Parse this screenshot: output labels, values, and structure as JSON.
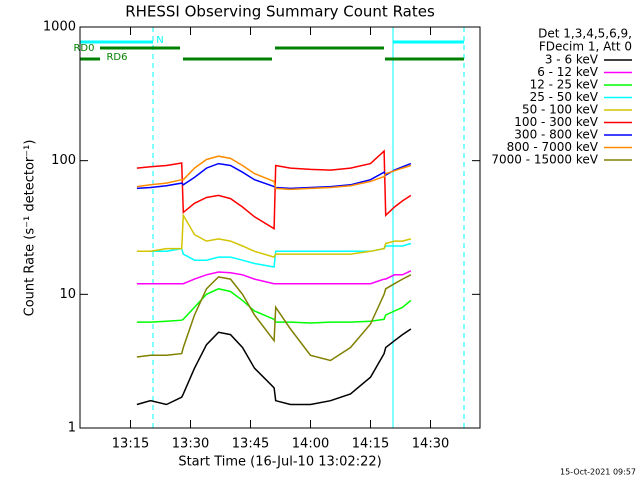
{
  "chart_data": {
    "type": "line",
    "title": "RHESSI Observing Summary Count Rates",
    "xlabel": "Start Time (16-Jul-10 13:02:22)",
    "ylabel": "Count Rate (s⁻¹ detector⁻¹)",
    "legend_header": [
      "Det 1,3,4,5,6,9,",
      "FDecim 1, Att 0"
    ],
    "footer": "15-Oct-2021 09:57",
    "log_y": true,
    "xlim": [
      2.37,
      102.37
    ],
    "ylim": [
      1,
      1000
    ],
    "xticks": [
      {
        "value": 15,
        "label": "13:15"
      },
      {
        "value": 30,
        "label": "13:30"
      },
      {
        "value": 45,
        "label": "13:45"
      },
      {
        "value": 60,
        "label": "14:00"
      },
      {
        "value": 75,
        "label": "14:15"
      },
      {
        "value": 90,
        "label": "14:30"
      }
    ],
    "yticks": [
      1,
      10,
      100,
      1000
    ],
    "x": [
      16.6,
      20,
      24,
      27.8,
      28.2,
      31,
      34,
      37,
      40,
      43,
      46,
      50.9,
      51.3,
      55,
      60,
      65,
      70,
      75,
      78.4,
      78.8,
      81,
      83,
      85.1
    ],
    "series": [
      {
        "name": "3 - 6 keV",
        "color": "#000000",
        "values": [
          1.5,
          1.6,
          1.5,
          1.7,
          1.8,
          2.8,
          4.2,
          5.2,
          5,
          4,
          2.8,
          2,
          1.6,
          1.5,
          1.5,
          1.6,
          1.8,
          2.4,
          3.6,
          4,
          4.5,
          5,
          5.5
        ]
      },
      {
        "name": "6 - 12 keV",
        "color": "#ff00ff",
        "values": [
          12,
          12,
          12,
          12,
          12,
          13,
          14,
          14.7,
          14.5,
          14,
          13,
          12,
          12,
          12,
          12,
          12,
          12,
          12,
          13,
          13,
          14,
          14,
          15
        ]
      },
      {
        "name": "12 - 25 keV",
        "color": "#00ff00",
        "values": [
          6.2,
          6.2,
          6.3,
          6.4,
          6.5,
          8,
          10,
          11,
          10.5,
          9,
          7.5,
          6.5,
          6.2,
          6.2,
          6.1,
          6.2,
          6.2,
          6.3,
          6.5,
          7,
          7.5,
          8,
          9
        ]
      },
      {
        "name": "25 - 50 keV",
        "color": "#00ffff",
        "values": [
          21,
          21,
          21,
          22,
          20,
          18,
          18,
          19,
          19,
          18,
          17,
          16,
          21,
          21,
          21,
          21,
          21,
          21,
          22,
          23,
          23,
          23,
          24
        ]
      },
      {
        "name": "50 - 100 keV",
        "color": "#d4c400",
        "values": [
          21,
          21,
          22,
          22,
          39,
          28,
          25,
          26,
          25,
          23,
          21,
          19,
          20,
          20,
          20,
          20,
          20,
          21,
          22,
          24,
          25,
          25,
          26
        ]
      },
      {
        "name": "100 - 300 keV",
        "color": "#ff0000",
        "values": [
          88,
          90,
          92,
          96,
          41,
          48,
          53,
          55,
          52,
          45,
          38,
          31,
          92,
          88,
          86,
          85,
          88,
          95,
          118,
          39,
          45,
          50,
          55
        ]
      },
      {
        "name": "300 - 800 keV",
        "color": "#0000ff",
        "values": [
          62,
          63,
          65,
          68,
          66,
          75,
          88,
          95,
          92,
          82,
          72,
          64,
          63,
          62,
          63,
          64,
          66,
          72,
          82,
          78,
          85,
          90,
          95
        ]
      },
      {
        "name": "800 - 7000 keV",
        "color": "#ff8c00",
        "values": [
          64,
          66,
          68,
          72,
          72,
          88,
          102,
          108,
          104,
          92,
          80,
          70,
          62,
          61,
          62,
          63,
          65,
          70,
          76,
          80,
          84,
          88,
          92
        ]
      },
      {
        "name": "7000 - 15000 keV",
        "color": "#808000",
        "values": [
          3.4,
          3.5,
          3.5,
          3.6,
          4,
          7,
          11,
          13.5,
          13,
          10,
          7,
          4.5,
          8,
          5.5,
          3.5,
          3.2,
          4,
          6,
          10,
          11,
          12,
          13,
          14
        ]
      }
    ],
    "flags": [
      {
        "label": "N",
        "color": "#00ffff",
        "intervals": [
          [
            2.37,
            20.62
          ],
          [
            80.62,
            98.37
          ]
        ]
      },
      {
        "label": "RD0",
        "color": "#008000",
        "intervals": [
          [
            7.37,
            27.37
          ],
          [
            51.12,
            78.37
          ]
        ]
      },
      {
        "label": "RD6",
        "color": "#008000",
        "intervals": [
          [
            2.37,
            7.37
          ],
          [
            28.12,
            50.37
          ],
          [
            78.62,
            98.37
          ]
        ]
      }
    ],
    "marker_color": "#00ffff",
    "markers": [
      {
        "x": 2.37,
        "style": "solid"
      },
      {
        "x": 20.62,
        "style": "dashed"
      },
      {
        "x": 80.62,
        "style": "solid"
      },
      {
        "x": 98.37,
        "style": "dashed"
      }
    ]
  }
}
